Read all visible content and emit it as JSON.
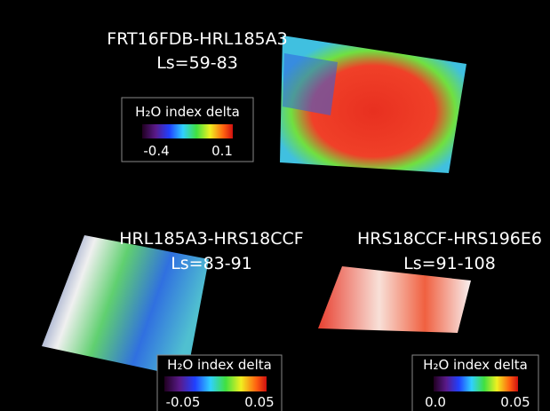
{
  "panels": [
    {
      "title": "FRT16FDB-HRL185A3",
      "subtitle": "Ls=59-83",
      "legend": {
        "label": "H₂O index delta",
        "ticks": [
          "-0.4",
          "0.1"
        ]
      }
    },
    {
      "title": "HRL185A3-HRS18CCF",
      "subtitle": "Ls=83-91",
      "legend": {
        "label": "H₂O index delta",
        "ticks": [
          "-0.05",
          "0.05"
        ]
      }
    },
    {
      "title": "HRS18CCF-HRS196E6",
      "subtitle": "Ls=91-108",
      "legend": {
        "label": "H₂O index delta",
        "ticks": [
          "0.0",
          "0.05"
        ]
      }
    }
  ]
}
